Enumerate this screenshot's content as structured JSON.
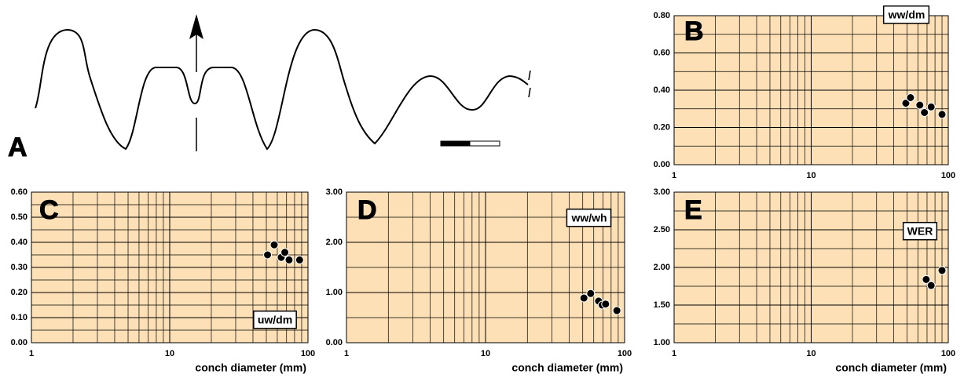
{
  "panel_a": {
    "label": "A"
  },
  "chart_data": [
    {
      "type": "scatter",
      "panel": "B",
      "label": "ww/dm",
      "log_x": true,
      "grid": true,
      "color": "#000000",
      "background": "#fde0b5",
      "x": [
        49,
        53,
        62,
        67,
        75,
        90
      ],
      "y": [
        0.33,
        0.36,
        0.32,
        0.28,
        0.31,
        0.27
      ],
      "xlim": [
        1,
        100
      ],
      "xticks": [
        1,
        10,
        100
      ],
      "ylim": [
        0,
        0.8
      ],
      "yticks": [
        {
          "value": 0,
          "label": "0.00"
        },
        {
          "value": 0.2,
          "label": "0.20"
        },
        {
          "value": 0.4,
          "label": "0.40"
        },
        {
          "value": 0.6,
          "label": "0.60"
        },
        {
          "value": 0.8,
          "label": "0.80"
        }
      ]
    },
    {
      "type": "scatter",
      "panel": "C",
      "label": "uw/dm",
      "xlabel": "conch diameter (mm)",
      "log_x": true,
      "grid": true,
      "color": "#000000",
      "background": "#fde0b5",
      "x": [
        51,
        57,
        64,
        68,
        73,
        87
      ],
      "y": [
        0.35,
        0.39,
        0.34,
        0.36,
        0.33,
        0.33
      ],
      "xlim": [
        1,
        100
      ],
      "xticks": [
        1,
        10,
        100
      ],
      "ylim": [
        0,
        0.6
      ],
      "yticks": [
        {
          "value": 0,
          "label": "0.00"
        },
        {
          "value": 0.1,
          "label": "0.10"
        },
        {
          "value": 0.2,
          "label": "0.20"
        },
        {
          "value": 0.3,
          "label": "0.30"
        },
        {
          "value": 0.4,
          "label": "0.40"
        },
        {
          "value": 0.5,
          "label": "0.50"
        },
        {
          "value": 0.6,
          "label": "0.60"
        }
      ]
    },
    {
      "type": "scatter",
      "panel": "D",
      "label": "ww/wh",
      "xlabel": "conch diameter (mm)",
      "log_x": true,
      "grid": true,
      "color": "#000000",
      "background": "#fde0b5",
      "x": [
        51,
        57,
        65,
        69,
        73,
        88
      ],
      "y": [
        0.89,
        0.98,
        0.83,
        0.75,
        0.77,
        0.64
      ],
      "xlim": [
        1,
        100
      ],
      "xticks": [
        1,
        10,
        100
      ],
      "ylim": [
        0,
        3
      ],
      "yticks": [
        {
          "value": 0,
          "label": "0.00"
        },
        {
          "value": 1,
          "label": "1.00"
        },
        {
          "value": 2,
          "label": "2.00"
        },
        {
          "value": 3,
          "label": "3.00"
        }
      ]
    },
    {
      "type": "scatter",
      "panel": "E",
      "label": "WER",
      "xlabel": "conch diameter (mm)",
      "log_x": true,
      "grid": true,
      "color": "#000000",
      "background": "#fde0b5",
      "x": [
        69,
        75,
        90
      ],
      "y": [
        1.84,
        1.76,
        1.96
      ],
      "xlim": [
        1,
        100
      ],
      "xticks": [
        1,
        10,
        100
      ],
      "ylim": [
        1,
        3
      ],
      "yticks": [
        {
          "value": 1,
          "label": "1.00"
        },
        {
          "value": 1.5,
          "label": "1.50"
        },
        {
          "value": 2,
          "label": "2.00"
        },
        {
          "value": 2.5,
          "label": "2.50"
        },
        {
          "value": 3,
          "label": "3.00"
        }
      ]
    }
  ]
}
